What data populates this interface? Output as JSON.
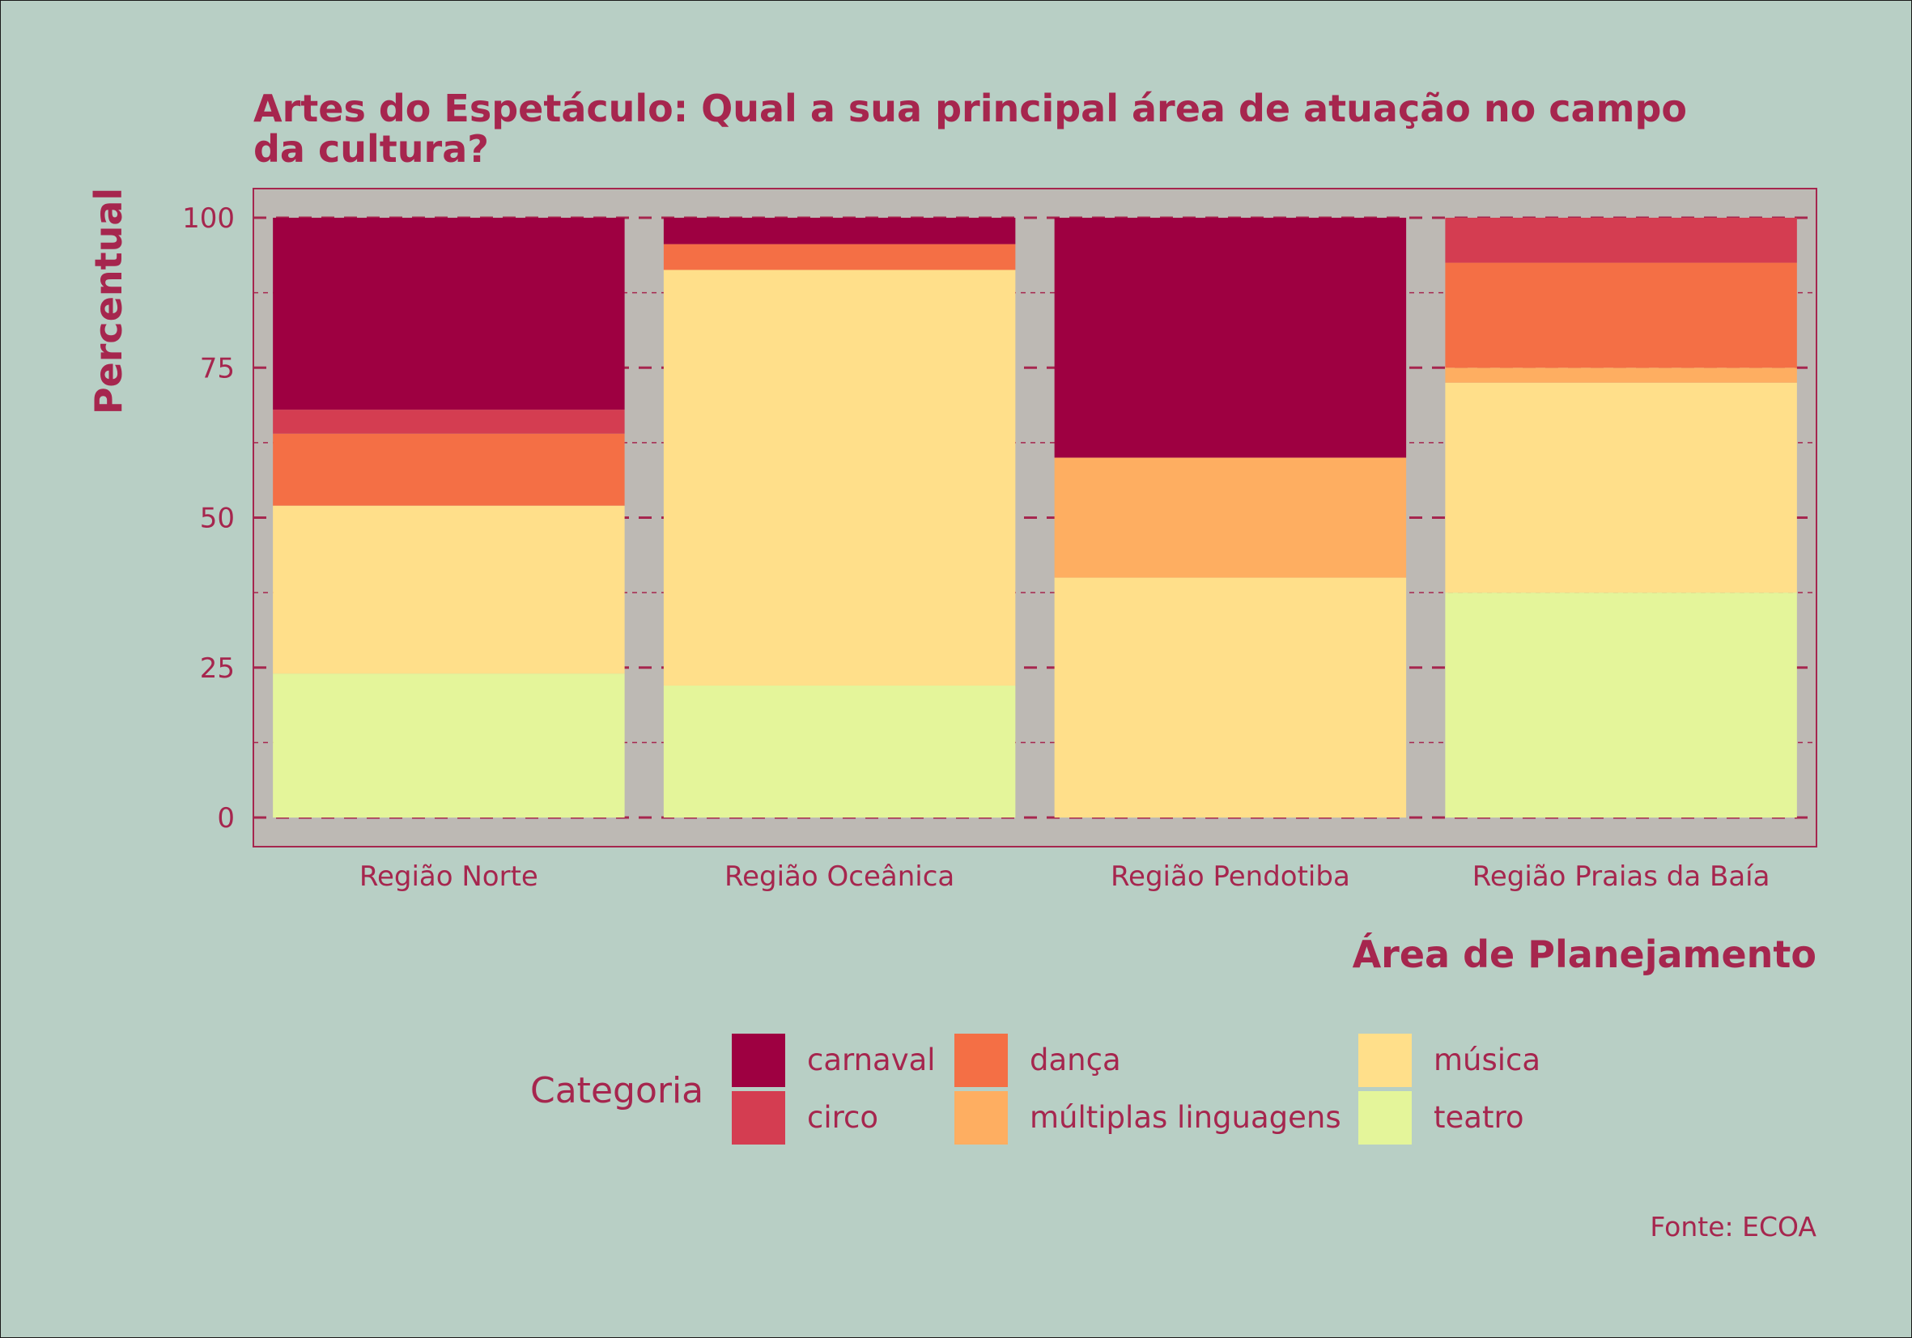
{
  "chart_data": {
    "type": "bar",
    "stacked": true,
    "title_lines": [
      "Artes do Espetáculo: Qual a sua principal área de atuação no campo",
      "da cultura?"
    ],
    "xlabel": "Área de Planejamento",
    "ylabel": "Percentual",
    "ylim": [
      0,
      100
    ],
    "yticks": [
      0,
      25,
      50,
      75,
      100
    ],
    "categories": [
      "Região Norte",
      "Região Oceânica",
      "Região Pendotiba",
      "Região Praias da Baía"
    ],
    "series": [
      {
        "name": "teatro",
        "color": "#e4f59a",
        "values": [
          24,
          22,
          0,
          37.5
        ]
      },
      {
        "name": "música",
        "color": "#ffdf8a",
        "values": [
          28,
          69.3,
          40,
          35
        ]
      },
      {
        "name": "múltiplas linguagens",
        "color": "#feae61",
        "values": [
          0,
          0,
          20,
          2.5
        ]
      },
      {
        "name": "dança",
        "color": "#f46f45",
        "values": [
          12,
          4.3,
          0,
          17.5
        ]
      },
      {
        "name": "circo",
        "color": "#d43d51",
        "values": [
          4,
          0,
          0,
          7.5
        ]
      },
      {
        "name": "carnaval",
        "color": "#9e0041",
        "values": [
          32,
          4.4,
          40,
          0
        ]
      }
    ],
    "grid": true,
    "legend": {
      "title": "Categoria",
      "placement": "bottom",
      "order": [
        "carnaval",
        "circo",
        "dança",
        "múltiplas linguagens",
        "música",
        "teatro"
      ]
    },
    "caption": "Fonte: ECOA",
    "colors": {
      "background": "#b8cfc5",
      "panel": "#bdb9b4",
      "text": "#a6264e"
    }
  }
}
